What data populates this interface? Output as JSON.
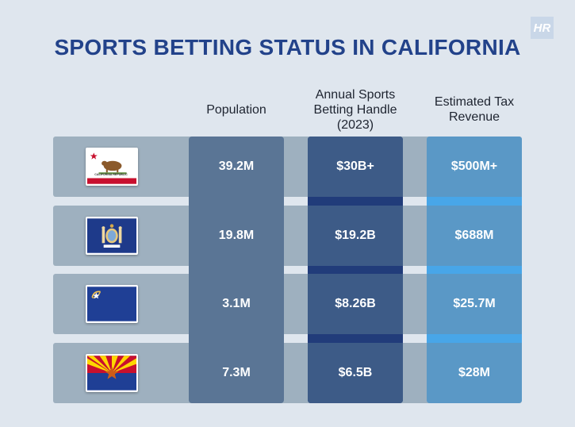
{
  "title": "SPORTS BETTING STATUS IN CALIFORNIA",
  "logo_text": "HR",
  "columns": [
    "Population",
    "Annual Sports Betting Handle (2023)",
    "Estimated Tax Revenue"
  ],
  "flags": [
    "california-flag-icon",
    "new-york-flag-icon",
    "nevada-flag-icon",
    "arizona-flag-icon"
  ],
  "california_flag_text": "CALIFORNIA REPUBLIC",
  "colors": {
    "title": "#22428a",
    "population": "#5a7595",
    "handle": "#3d5b87",
    "tax": "#5a98c6",
    "row_band": "#9eb0bf"
  },
  "chart_data": {
    "type": "table",
    "title": "SPORTS BETTING STATUS IN CALIFORNIA",
    "columns": [
      "Population",
      "Annual Sports Betting Handle (2023)",
      "Estimated Tax Revenue"
    ],
    "rows": [
      {
        "flag": "California",
        "values": [
          "39.2M",
          "$30B+",
          "$500M+"
        ]
      },
      {
        "flag": "New York",
        "values": [
          "19.8M",
          "$19.2B",
          "$688M"
        ]
      },
      {
        "flag": "Nevada",
        "values": [
          "3.1M",
          "$8.26B",
          "$25.7M"
        ]
      },
      {
        "flag": "Arizona",
        "values": [
          "7.3M",
          "$6.5B",
          "$28M"
        ]
      }
    ]
  }
}
